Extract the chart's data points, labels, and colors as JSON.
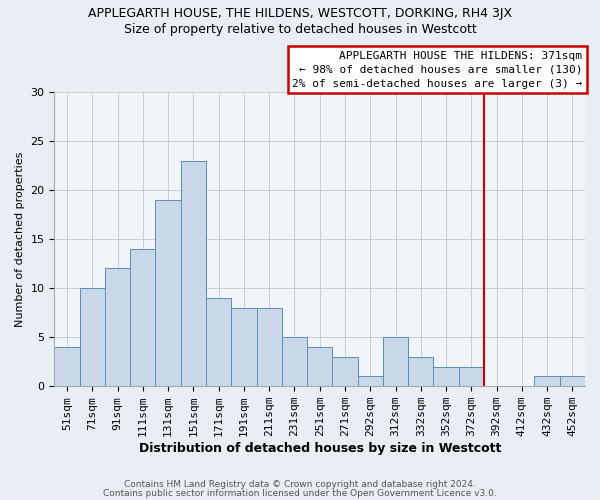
{
  "title": "APPLEGARTH HOUSE, THE HILDENS, WESTCOTT, DORKING, RH4 3JX",
  "subtitle": "Size of property relative to detached houses in Westcott",
  "xlabel": "Distribution of detached houses by size in Westcott",
  "ylabel": "Number of detached properties",
  "bar_labels": [
    "51sqm",
    "71sqm",
    "91sqm",
    "111sqm",
    "131sqm",
    "151sqm",
    "171sqm",
    "191sqm",
    "211sqm",
    "231sqm",
    "251sqm",
    "271sqm",
    "292sqm",
    "312sqm",
    "332sqm",
    "352sqm",
    "372sqm",
    "392sqm",
    "412sqm",
    "432sqm",
    "452sqm"
  ],
  "bar_values": [
    4,
    10,
    12,
    14,
    19,
    23,
    9,
    8,
    8,
    5,
    4,
    3,
    1,
    5,
    3,
    2,
    2,
    0,
    0,
    1,
    1
  ],
  "bar_color": "#c8d8e8",
  "bar_edgecolor": "#5b8db8",
  "vline_color": "#cc0000",
  "vline_index": 16,
  "annotation_title": "APPLEGARTH HOUSE THE HILDENS: 371sqm",
  "annotation_line1": "← 98% of detached houses are smaller (130)",
  "annotation_line2": "2% of semi-detached houses are larger (3) →",
  "annotation_box_edgecolor": "#cc0000",
  "ylim": [
    0,
    30
  ],
  "yticks": [
    0,
    5,
    10,
    15,
    20,
    25,
    30
  ],
  "footer_line1": "Contains HM Land Registry data © Crown copyright and database right 2024.",
  "footer_line2": "Contains public sector information licensed under the Open Government Licence v3.0.",
  "bg_color": "#e8eef4",
  "plot_bg_color": "#f0f5fa",
  "title_fontsize": 9,
  "subtitle_fontsize": 9,
  "xlabel_fontsize": 9,
  "ylabel_fontsize": 8,
  "tick_fontsize": 8,
  "annotation_fontsize": 8,
  "footer_fontsize": 6.5
}
